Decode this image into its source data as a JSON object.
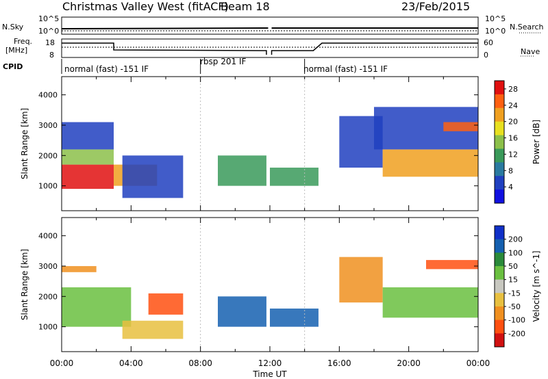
{
  "header": {
    "station_title": "Christmas Valley West (fitACF)",
    "beam": "Beam 18",
    "date": "23/Feb/2015"
  },
  "param_panels": {
    "nsky_label": "N.Sky",
    "nsky_ticks": [
      "10^5",
      "10^0"
    ],
    "nsearch_label": "N.Search",
    "nsearch_ticks": [
      "10^5",
      "10^0"
    ],
    "freq_label": "Freq.",
    "freq_unit": "[MHz]",
    "freq_ticks": [
      "18",
      "8"
    ],
    "nave_label": "Nave",
    "nave_ticks": [
      "60",
      "0"
    ],
    "cpid_label": "CPID"
  },
  "cpid_segments": [
    {
      "start_hour": 0,
      "end_hour": 8,
      "label": "normal (fast) -151 IF"
    },
    {
      "start_hour": 8,
      "end_hour": 14,
      "label": "rbsp 201 IF"
    },
    {
      "start_hour": 14,
      "end_hour": 24,
      "label": "normal (fast) -151 IF"
    }
  ],
  "colors": {
    "power_scale": [
      "#1010e0",
      "#2040c0",
      "#2a7aa0",
      "#3a9a5a",
      "#8cc04a",
      "#e8e020",
      "#f0a020",
      "#ff6010",
      "#e01010"
    ],
    "velocity_scale": [
      "#1030c8",
      "#1560b0",
      "#2a8a3a",
      "#6ac040",
      "#c8c8c0",
      "#e8c040",
      "#f09020",
      "#ff5010",
      "#d01010"
    ]
  },
  "chart_data": [
    {
      "type": "heatmap",
      "title": "Power",
      "ylabel": "Slant Range [km]",
      "xlabel": "Time UT",
      "x_ticks": [
        "00:00",
        "04:00",
        "08:00",
        "12:00",
        "16:00",
        "20:00",
        "00:00"
      ],
      "y_ticks": [
        1000,
        2000,
        3000,
        4000
      ],
      "ylim": [
        180,
        4600
      ],
      "colorbar": {
        "label": "Power [dB]",
        "ticks": [
          4,
          8,
          12,
          16,
          20,
          24,
          28
        ]
      },
      "regions": [
        {
          "t0": 0.0,
          "t1": 3.0,
          "r0": 900,
          "r1": 1700,
          "level": 28
        },
        {
          "t0": 0.0,
          "t1": 3.0,
          "r0": 1700,
          "r1": 2200,
          "level": 14
        },
        {
          "t0": 0.0,
          "t1": 3.0,
          "r0": 2200,
          "r1": 3100,
          "level": 6
        },
        {
          "t0": 3.0,
          "t1": 5.5,
          "r0": 1000,
          "r1": 1700,
          "level": 20
        },
        {
          "t0": 3.5,
          "t1": 7.0,
          "r0": 600,
          "r1": 2000,
          "level": 6
        },
        {
          "t0": 9.0,
          "t1": 11.8,
          "r0": 1000,
          "r1": 2000,
          "level": 12
        },
        {
          "t0": 12.0,
          "t1": 14.8,
          "r0": 1000,
          "r1": 1600,
          "level": 12
        },
        {
          "t0": 16.0,
          "t1": 18.5,
          "r0": 1600,
          "r1": 3300,
          "level": 6
        },
        {
          "t0": 18.5,
          "t1": 24.0,
          "r0": 1300,
          "r1": 2200,
          "level": 20
        },
        {
          "t0": 18.0,
          "t1": 24.0,
          "r0": 2200,
          "r1": 3600,
          "level": 6
        },
        {
          "t0": 22.0,
          "t1": 24.0,
          "r0": 2800,
          "r1": 3100,
          "level": 24
        }
      ]
    },
    {
      "type": "heatmap",
      "title": "Velocity",
      "ylabel": "Slant Range [km]",
      "xlabel": "Time UT",
      "x_ticks": [
        "00:00",
        "04:00",
        "08:00",
        "12:00",
        "16:00",
        "20:00",
        "00:00"
      ],
      "y_ticks": [
        1000,
        2000,
        3000,
        4000
      ],
      "ylim": [
        180,
        4600
      ],
      "colorbar": {
        "label": "Velocity [m s^-1]",
        "ticks": [
          200,
          100,
          50,
          15,
          -15,
          -50,
          -100,
          -200
        ]
      },
      "regions": [
        {
          "t0": 0.0,
          "t1": 4.0,
          "r0": 1000,
          "r1": 2300,
          "level": 0
        },
        {
          "t0": 0.0,
          "t1": 2.0,
          "r0": 2800,
          "r1": 3000,
          "level": -150
        },
        {
          "t0": 3.5,
          "t1": 7.0,
          "r0": 600,
          "r1": 1200,
          "level": -80
        },
        {
          "t0": 5.0,
          "t1": 7.0,
          "r0": 1400,
          "r1": 2100,
          "level": -200
        },
        {
          "t0": 9.0,
          "t1": 11.8,
          "r0": 1000,
          "r1": 2000,
          "level": 60
        },
        {
          "t0": 12.0,
          "t1": 14.8,
          "r0": 1000,
          "r1": 1600,
          "level": 80
        },
        {
          "t0": 16.0,
          "t1": 18.5,
          "r0": 1800,
          "r1": 3300,
          "level": -120
        },
        {
          "t0": 18.5,
          "t1": 24.0,
          "r0": 1300,
          "r1": 2300,
          "level": 0
        },
        {
          "t0": 21.0,
          "t1": 24.0,
          "r0": 2900,
          "r1": 3200,
          "level": -200
        }
      ]
    }
  ]
}
